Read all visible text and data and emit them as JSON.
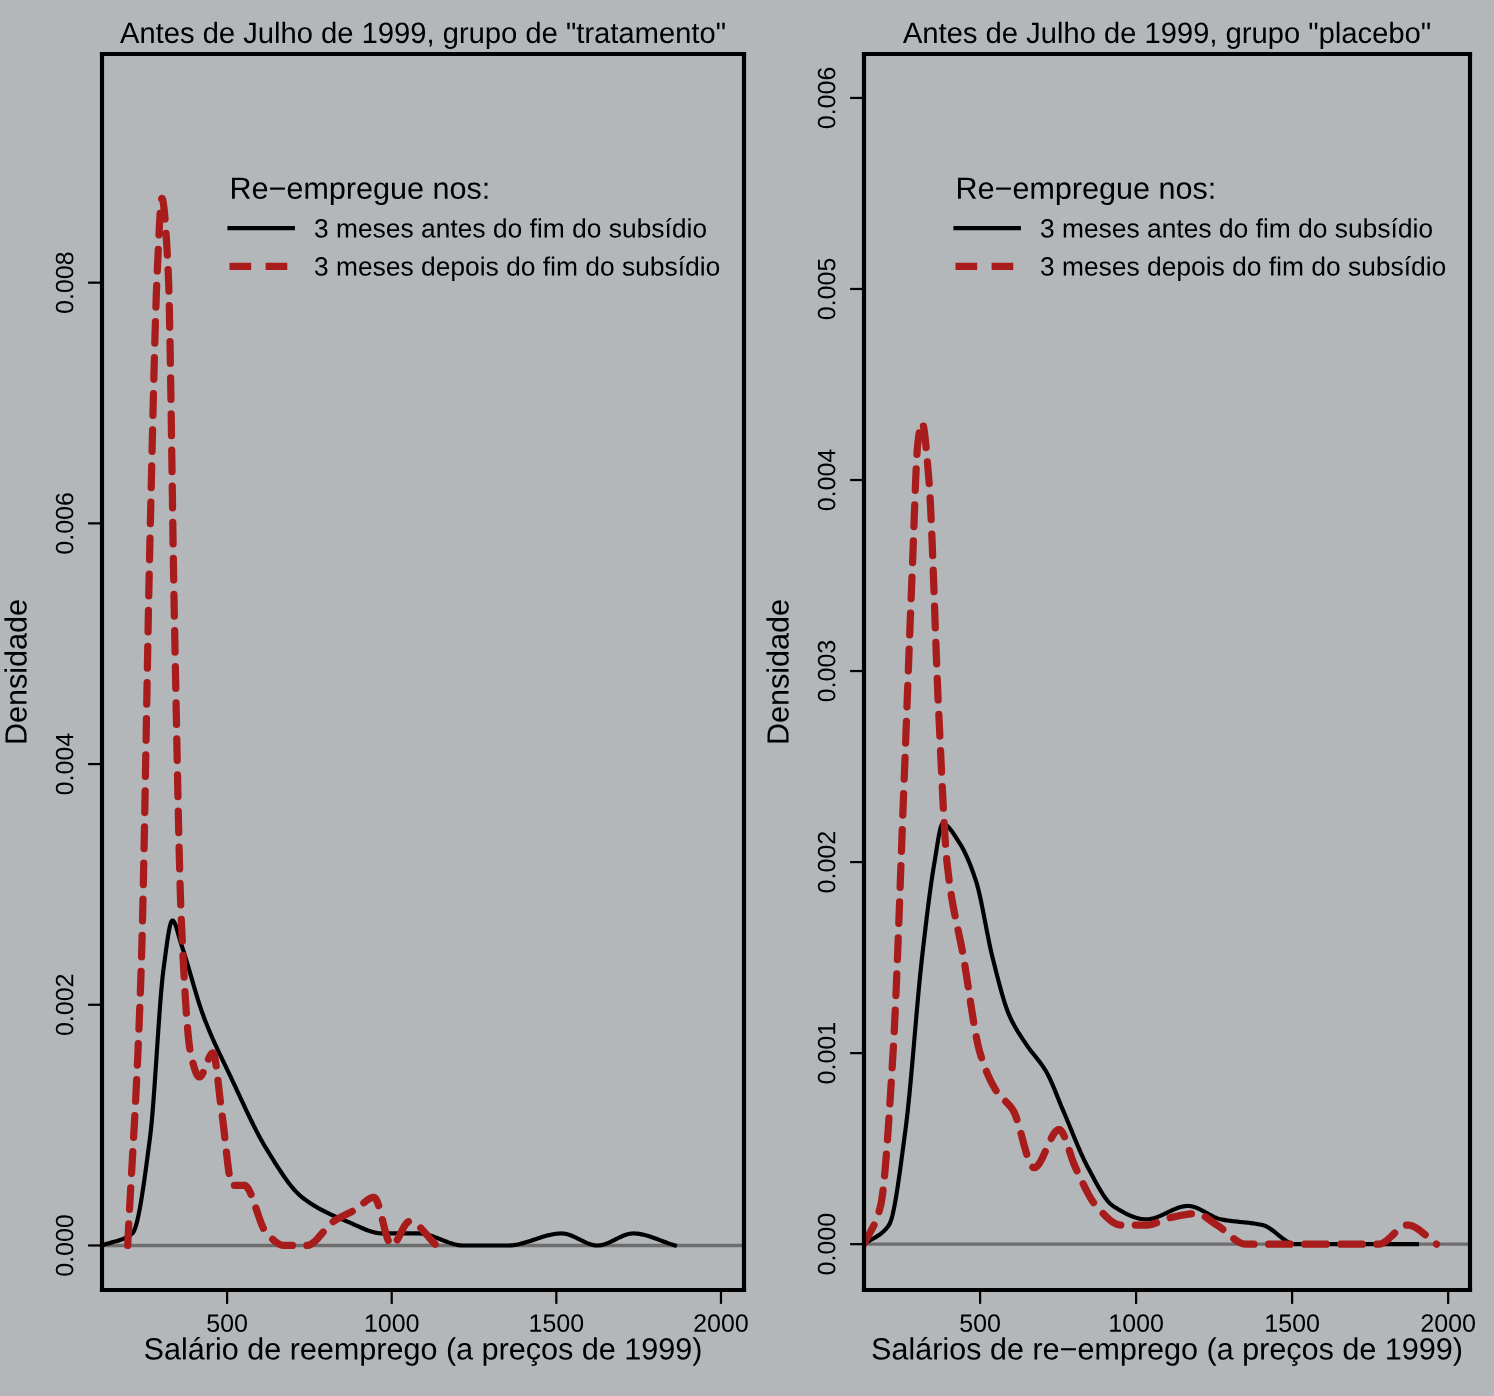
{
  "chart_data": [
    {
      "type": "line",
      "title": "Antes de Julho de 1999, grupo de \"tratamento\"",
      "xlabel": "Salário de reemprego (a preços de 1999)",
      "ylabel": "Densidade",
      "legend_title": "Re−empregue nos:",
      "legend": "top right",
      "grid": false,
      "xlim": [
        120,
        2070
      ],
      "xticks": [
        500,
        1000,
        1500,
        2000
      ],
      "ylim": [
        -0.00037,
        0.0099
      ],
      "yticks": [
        {
          "value": 0,
          "label": "0.000"
        },
        {
          "value": 0.002,
          "label": "0.002"
        },
        {
          "value": 0.004,
          "label": "0.004"
        },
        {
          "value": 0.006,
          "label": "0.006"
        },
        {
          "value": 0.008,
          "label": "0.008"
        }
      ],
      "ref_lines": [
        {
          "axis": "y",
          "value": 0,
          "color": "#6e6e6e"
        }
      ],
      "series": [
        {
          "name": "3 meses antes do fim do subsídio",
          "color": "#000000",
          "line_style": "solid",
          "x": [
            120,
            212,
            266,
            307,
            334,
            361,
            429,
            511,
            620,
            728,
            864,
            973,
            1081,
            1217,
            1353,
            1516,
            1625,
            1734,
            1860
          ],
          "values": [
            0,
            0.0001,
            0.0009,
            0.0023,
            0.0027,
            0.0025,
            0.0019,
            0.0014,
            0.0008,
            0.0004,
            0.0002,
            0.0001,
            0.0001,
            0,
            0,
            0.0001,
            0,
            0.0001,
            0
          ]
        },
        {
          "name": "3 meses depois do fim do subsídio",
          "color": "#a81c1c",
          "line_style": "dashed",
          "x": [
            198,
            239,
            266,
            288,
            302,
            321,
            340,
            361,
            389,
            416,
            457,
            484,
            516,
            552,
            620,
            674,
            742,
            823,
            891,
            946,
            1000,
            1054,
            1136
          ],
          "values": [
            0,
            0.0023,
            0.0059,
            0.0081,
            0.0087,
            0.0081,
            0.0052,
            0.0027,
            0.0016,
            0.0014,
            0.0016,
            0.0011,
            0.0005,
            0.0005,
            0.0001,
            0,
            0,
            0.0002,
            0.0003,
            0.0004,
            0,
            0.0002,
            0
          ]
        }
      ]
    },
    {
      "type": "line",
      "title": "Antes de Julho de 1999, grupo \"placebo\"",
      "xlabel": "Salários de re−emprego (a preços de 1999)",
      "ylabel": "Densidade",
      "legend_title": "Re−empregue nos:",
      "legend": "top right",
      "grid": false,
      "xlim": [
        128,
        2070
      ],
      "xticks": [
        500,
        1000,
        1500,
        2000
      ],
      "ylim": [
        -0.00024,
        0.00623
      ],
      "yticks": [
        {
          "value": 0,
          "label": "0.000"
        },
        {
          "value": 0.001,
          "label": "0.001"
        },
        {
          "value": 0.002,
          "label": "0.002"
        },
        {
          "value": 0.003,
          "label": "0.003"
        },
        {
          "value": 0.004,
          "label": "0.004"
        },
        {
          "value": 0.005,
          "label": "0.005"
        },
        {
          "value": 0.006,
          "label": "0.006"
        }
      ],
      "ref_lines": [
        {
          "axis": "y",
          "value": 0,
          "color": "#6e6e6e"
        }
      ],
      "series": [
        {
          "name": "3 meses antes do fim do subsídio",
          "color": "#000000",
          "line_style": "solid",
          "x": [
            128,
            208,
            261,
            314,
            354,
            380,
            434,
            487,
            540,
            593,
            646,
            713,
            766,
            846,
            926,
            1033,
            1166,
            1272,
            1405,
            1511,
            1671,
            1830,
            1900
          ],
          "values": [
            0,
            0.0001,
            0.0006,
            0.0015,
            0.002,
            0.0022,
            0.0021,
            0.0019,
            0.0015,
            0.0012,
            0.00105,
            0.0009,
            0.0007,
            0.0004,
            0.0002,
            0.00013,
            0.0002,
            0.00013,
            0.0001,
            0,
            0,
            0,
            0
          ]
        },
        {
          "name": "3 meses depois do fim do subsídio",
          "color": "#a81c1c",
          "line_style": "dashed",
          "x": [
            128,
            181,
            221,
            256,
            282,
            301,
            314,
            336,
            367,
            394,
            447,
            500,
            553,
            606,
            673,
            753,
            806,
            872,
            952,
            1033,
            1113,
            1193,
            1259,
            1352,
            1458,
            1565,
            1671,
            1777,
            1870,
            1963
          ],
          "values": [
            0,
            0.0002,
            0.001,
            0.0024,
            0.0035,
            0.0042,
            0.0043,
            0.004,
            0.0028,
            0.002,
            0.0015,
            0.001,
            0.0008,
            0.0007,
            0.0004,
            0.0006,
            0.0004,
            0.0002,
            0.0001,
            0.0001,
            0.00014,
            0.00016,
            0.0001,
            0,
            0,
            0,
            0,
            0,
            0.0001,
            0
          ]
        }
      ]
    }
  ]
}
